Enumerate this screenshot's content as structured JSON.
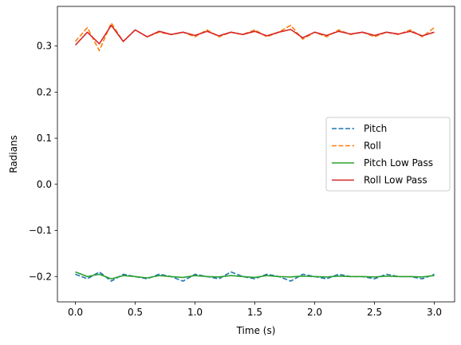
{
  "chart_data": {
    "type": "line",
    "title": "",
    "xlabel": "Time (s)",
    "ylabel": "Radians",
    "xlim": [
      -0.15,
      3.17
    ],
    "ylim": [
      -0.255,
      0.386
    ],
    "xticks": [
      0.0,
      0.5,
      1.0,
      1.5,
      2.0,
      2.5,
      3.0
    ],
    "xtick_labels": [
      "0.0",
      "0.5",
      "1.0",
      "1.5",
      "2.0",
      "2.5",
      "3.0"
    ],
    "yticks": [
      -0.2,
      -0.1,
      0.0,
      0.1,
      0.2,
      0.3
    ],
    "ytick_labels": [
      "−0.2",
      "−0.1",
      "0.0",
      "0.1",
      "0.2",
      "0.3"
    ],
    "grid": false,
    "legend": "center-right",
    "series": [
      {
        "name": "Pitch",
        "style": "dashed",
        "color": "#1f77b4",
        "x": [
          0.0,
          0.1,
          0.2,
          0.3,
          0.4,
          0.5,
          0.6,
          0.7,
          0.8,
          0.9,
          1.0,
          1.1,
          1.2,
          1.3,
          1.4,
          1.5,
          1.6,
          1.7,
          1.8,
          1.9,
          2.0,
          2.1,
          2.2,
          2.3,
          2.4,
          2.5,
          2.6,
          2.7,
          2.8,
          2.9,
          3.0
        ],
        "y": [
          -0.195,
          -0.205,
          -0.19,
          -0.21,
          -0.195,
          -0.2,
          -0.205,
          -0.195,
          -0.2,
          -0.21,
          -0.195,
          -0.2,
          -0.205,
          -0.19,
          -0.2,
          -0.205,
          -0.195,
          -0.2,
          -0.21,
          -0.195,
          -0.2,
          -0.205,
          -0.195,
          -0.2,
          -0.2,
          -0.205,
          -0.195,
          -0.2,
          -0.2,
          -0.205,
          -0.195
        ]
      },
      {
        "name": "Roll",
        "style": "dashed",
        "color": "#ff7f0e",
        "x": [
          0.0,
          0.1,
          0.2,
          0.3,
          0.4,
          0.5,
          0.6,
          0.7,
          0.8,
          0.9,
          1.0,
          1.1,
          1.2,
          1.3,
          1.4,
          1.5,
          1.6,
          1.7,
          1.8,
          1.9,
          2.0,
          2.1,
          2.2,
          2.3,
          2.4,
          2.5,
          2.6,
          2.7,
          2.8,
          2.9,
          3.0
        ],
        "y": [
          0.31,
          0.34,
          0.29,
          0.35,
          0.31,
          0.335,
          0.32,
          0.33,
          0.325,
          0.33,
          0.32,
          0.335,
          0.32,
          0.33,
          0.325,
          0.335,
          0.32,
          0.33,
          0.345,
          0.315,
          0.33,
          0.32,
          0.335,
          0.325,
          0.33,
          0.32,
          0.33,
          0.325,
          0.335,
          0.32,
          0.34
        ]
      },
      {
        "name": "Pitch Low Pass",
        "style": "solid",
        "color": "#2ca02c",
        "x": [
          0.0,
          0.1,
          0.2,
          0.3,
          0.4,
          0.5,
          0.6,
          0.7,
          0.8,
          0.9,
          1.0,
          1.1,
          1.2,
          1.3,
          1.4,
          1.5,
          1.6,
          1.7,
          1.8,
          1.9,
          2.0,
          2.1,
          2.2,
          2.3,
          2.4,
          2.5,
          2.6,
          2.7,
          2.8,
          2.9,
          3.0
        ],
        "y": [
          -0.19,
          -0.2,
          -0.195,
          -0.205,
          -0.198,
          -0.2,
          -0.203,
          -0.198,
          -0.2,
          -0.202,
          -0.198,
          -0.2,
          -0.201,
          -0.198,
          -0.2,
          -0.202,
          -0.198,
          -0.2,
          -0.201,
          -0.199,
          -0.2,
          -0.201,
          -0.199,
          -0.2,
          -0.2,
          -0.201,
          -0.199,
          -0.2,
          -0.2,
          -0.201,
          -0.198
        ]
      },
      {
        "name": "Roll Low Pass",
        "style": "solid",
        "color": "#d62728",
        "x": [
          0.0,
          0.1,
          0.2,
          0.3,
          0.4,
          0.5,
          0.6,
          0.7,
          0.8,
          0.9,
          1.0,
          1.1,
          1.2,
          1.3,
          1.4,
          1.5,
          1.6,
          1.7,
          1.8,
          1.9,
          2.0,
          2.1,
          2.2,
          2.3,
          2.4,
          2.5,
          2.6,
          2.7,
          2.8,
          2.9,
          3.0
        ],
        "y": [
          0.302,
          0.33,
          0.305,
          0.345,
          0.31,
          0.335,
          0.32,
          0.332,
          0.325,
          0.33,
          0.323,
          0.332,
          0.322,
          0.33,
          0.325,
          0.332,
          0.322,
          0.33,
          0.336,
          0.318,
          0.33,
          0.323,
          0.332,
          0.326,
          0.33,
          0.323,
          0.33,
          0.326,
          0.332,
          0.322,
          0.33
        ]
      }
    ]
  }
}
